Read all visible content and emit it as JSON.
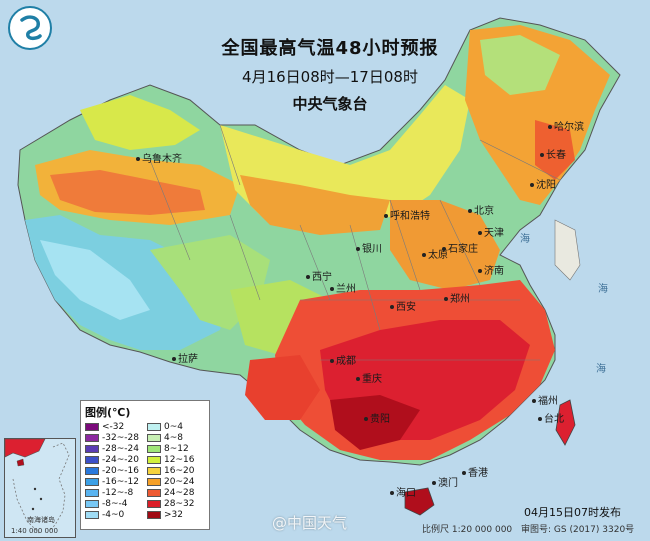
{
  "map": {
    "title": "全国最高气温48小时预报",
    "time_range": "4月16日08时—17日08时",
    "organization": "中央气象台",
    "legend": {
      "title": "图例(℃)",
      "items": [
        {
          "label": "<-32",
          "color": "#7a0a7a"
        },
        {
          "label": "0~4",
          "color": "#bff0f0"
        },
        {
          "label": "-32~-28",
          "color": "#8c2aa0"
        },
        {
          "label": "4~8",
          "color": "#c8f0b4"
        },
        {
          "label": "-28~-24",
          "color": "#5a3cb4"
        },
        {
          "label": "8~12",
          "color": "#a0e678"
        },
        {
          "label": "-24~-20",
          "color": "#3c50c8"
        },
        {
          "label": "12~16",
          "color": "#d2f03c"
        },
        {
          "label": "-20~-16",
          "color": "#2878dc"
        },
        {
          "label": "16~20",
          "color": "#f5d23c"
        },
        {
          "label": "-16~-12",
          "color": "#3ca0e6"
        },
        {
          "label": "20~24",
          "color": "#f5a028"
        },
        {
          "label": "-12~-8",
          "color": "#5ab4f0"
        },
        {
          "label": "24~28",
          "color": "#ee5a32"
        },
        {
          "label": "-8~-4",
          "color": "#78c8f5"
        },
        {
          "label": "28~32",
          "color": "#dc1e28"
        },
        {
          "label": "-4~0",
          "color": "#a0dcf5"
        },
        {
          "label": ">32",
          "color": "#a00a14"
        }
      ]
    },
    "cities": [
      {
        "name": "哈尔滨",
        "key": "harbin"
      },
      {
        "name": "长春",
        "key": "changchun"
      },
      {
        "name": "沈阳",
        "key": "shenyang"
      },
      {
        "name": "乌鲁木齐",
        "key": "urumqi"
      },
      {
        "name": "呼和浩特",
        "key": "hohhot"
      },
      {
        "name": "北京",
        "key": "beijing"
      },
      {
        "name": "天津",
        "key": "tianjin"
      },
      {
        "name": "银川",
        "key": "yinchuan"
      },
      {
        "name": "太原",
        "key": "taiyuan"
      },
      {
        "name": "石家庄",
        "key": "shijiazhuang"
      },
      {
        "name": "济南",
        "key": "jinan"
      },
      {
        "name": "西宁",
        "key": "xining"
      },
      {
        "name": "兰州",
        "key": "lanzhou"
      },
      {
        "name": "郑州",
        "key": "zhengzhou"
      },
      {
        "name": "西安",
        "key": "xian"
      },
      {
        "name": "拉萨",
        "key": "lhasa"
      },
      {
        "name": "成都",
        "key": "chengdu"
      },
      {
        "name": "重庆",
        "key": "chongqing"
      },
      {
        "name": "贵阳",
        "key": "guiyang"
      },
      {
        "name": "福州",
        "key": "fuzhou"
      },
      {
        "name": "台北",
        "key": "taipei"
      },
      {
        "name": "香港",
        "key": "hongkong"
      },
      {
        "name": "澳门",
        "key": "macau"
      },
      {
        "name": "海口",
        "key": "haikou"
      }
    ],
    "inset": {
      "islands_label": "南海诸岛",
      "scale": "1:40 000 000"
    },
    "footer": {
      "issued": "04月15日07时发布",
      "scale": "比例尺 1:20 000 000",
      "review": "审图号: GS (2017) 3320号"
    },
    "watermark": "@中国天气",
    "sea_labels": [
      "海",
      "海",
      "海"
    ]
  }
}
